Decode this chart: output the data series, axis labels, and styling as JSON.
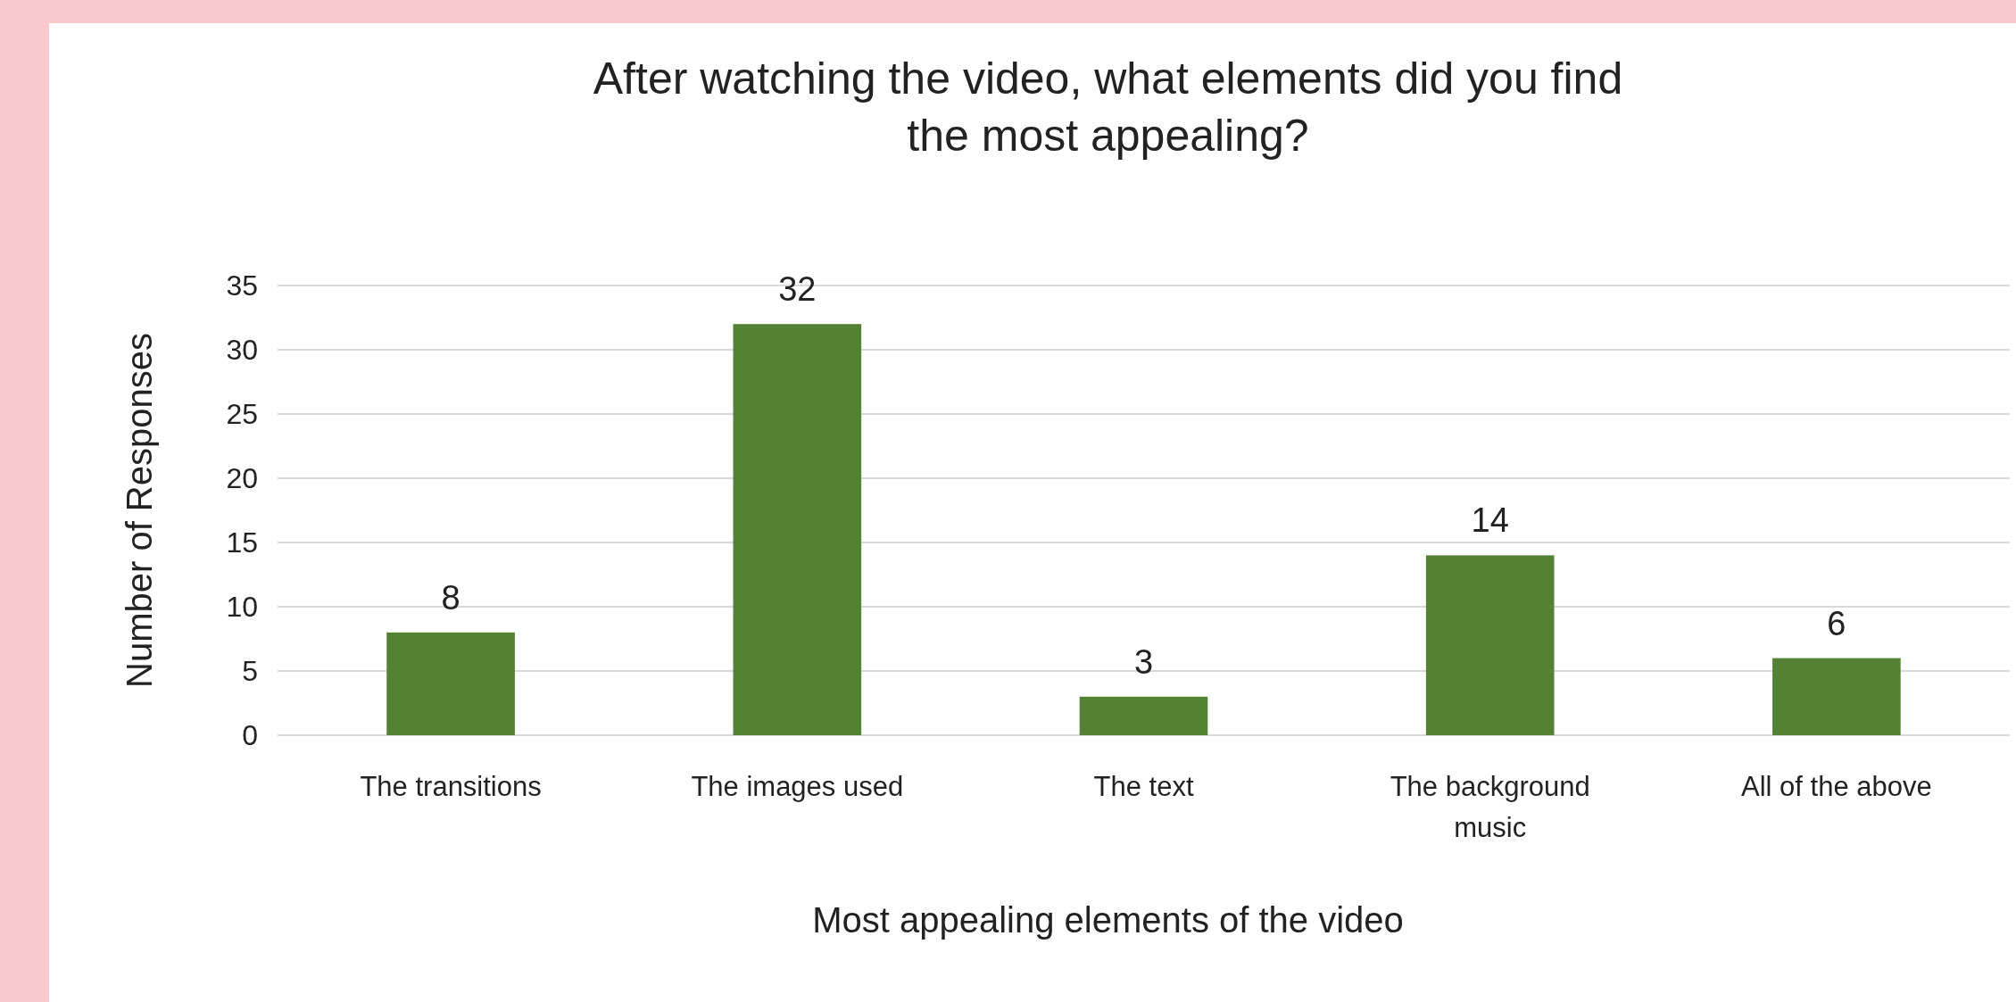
{
  "chart_data": {
    "type": "bar",
    "title": "After watching the video, what elements did you find the most appealing?",
    "xlabel": "Most appealing elements of the video",
    "ylabel": "Number of Responses",
    "categories": [
      "The transitions",
      "The images used",
      "The text",
      "The background music",
      "All of the above"
    ],
    "values": [
      8,
      32,
      3,
      14,
      6
    ],
    "color": "#548235",
    "ylim": [
      0,
      35
    ],
    "yticks": [
      0,
      5,
      10,
      15,
      20,
      25,
      30,
      35
    ],
    "grid": "y",
    "data_labels": true
  }
}
